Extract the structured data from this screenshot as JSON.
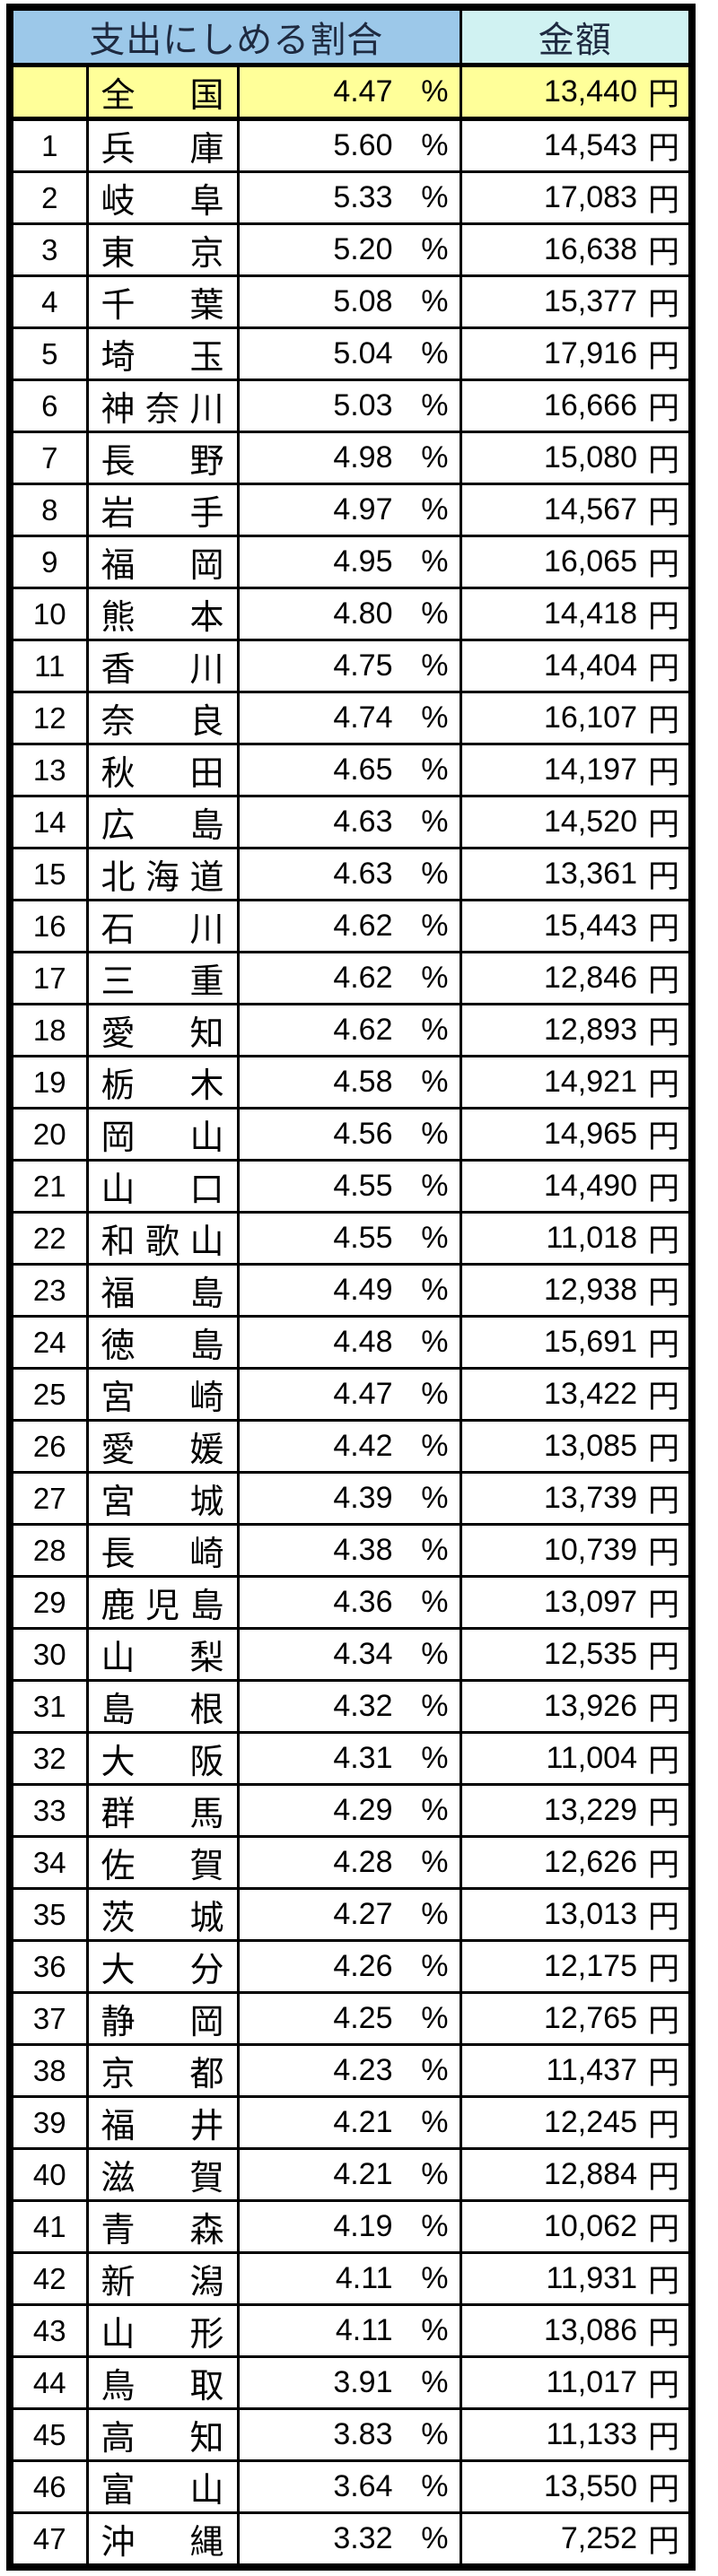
{
  "chart_data": {
    "type": "table",
    "title": "",
    "columns": {
      "ratio_header": "支出にしめる割合",
      "amount_header": "金額"
    },
    "units": {
      "percent": "%",
      "yen": "円"
    },
    "national": {
      "rank": "",
      "name": "全国",
      "percent": "4.47",
      "amount": "13,440"
    },
    "rows": [
      {
        "rank": "1",
        "name": "兵庫",
        "percent": "5.60",
        "amount": "14,543"
      },
      {
        "rank": "2",
        "name": "岐阜",
        "percent": "5.33",
        "amount": "17,083"
      },
      {
        "rank": "3",
        "name": "東京",
        "percent": "5.20",
        "amount": "16,638"
      },
      {
        "rank": "4",
        "name": "千葉",
        "percent": "5.08",
        "amount": "15,377"
      },
      {
        "rank": "5",
        "name": "埼玉",
        "percent": "5.04",
        "amount": "17,916"
      },
      {
        "rank": "6",
        "name": "神奈川",
        "percent": "5.03",
        "amount": "16,666"
      },
      {
        "rank": "7",
        "name": "長野",
        "percent": "4.98",
        "amount": "15,080"
      },
      {
        "rank": "8",
        "name": "岩手",
        "percent": "4.97",
        "amount": "14,567"
      },
      {
        "rank": "9",
        "name": "福岡",
        "percent": "4.95",
        "amount": "16,065"
      },
      {
        "rank": "10",
        "name": "熊本",
        "percent": "4.80",
        "amount": "14,418"
      },
      {
        "rank": "11",
        "name": "香川",
        "percent": "4.75",
        "amount": "14,404"
      },
      {
        "rank": "12",
        "name": "奈良",
        "percent": "4.74",
        "amount": "16,107"
      },
      {
        "rank": "13",
        "name": "秋田",
        "percent": "4.65",
        "amount": "14,197"
      },
      {
        "rank": "14",
        "name": "広島",
        "percent": "4.63",
        "amount": "14,520"
      },
      {
        "rank": "15",
        "name": "北海道",
        "percent": "4.63",
        "amount": "13,361"
      },
      {
        "rank": "16",
        "name": "石川",
        "percent": "4.62",
        "amount": "15,443"
      },
      {
        "rank": "17",
        "name": "三重",
        "percent": "4.62",
        "amount": "12,846"
      },
      {
        "rank": "18",
        "name": "愛知",
        "percent": "4.62",
        "amount": "12,893"
      },
      {
        "rank": "19",
        "name": "栃木",
        "percent": "4.58",
        "amount": "14,921"
      },
      {
        "rank": "20",
        "name": "岡山",
        "percent": "4.56",
        "amount": "14,965"
      },
      {
        "rank": "21",
        "name": "山口",
        "percent": "4.55",
        "amount": "14,490"
      },
      {
        "rank": "22",
        "name": "和歌山",
        "percent": "4.55",
        "amount": "11,018"
      },
      {
        "rank": "23",
        "name": "福島",
        "percent": "4.49",
        "amount": "12,938"
      },
      {
        "rank": "24",
        "name": "徳島",
        "percent": "4.48",
        "amount": "15,691"
      },
      {
        "rank": "25",
        "name": "宮崎",
        "percent": "4.47",
        "amount": "13,422"
      },
      {
        "rank": "26",
        "name": "愛媛",
        "percent": "4.42",
        "amount": "13,085"
      },
      {
        "rank": "27",
        "name": "宮城",
        "percent": "4.39",
        "amount": "13,739"
      },
      {
        "rank": "28",
        "name": "長崎",
        "percent": "4.38",
        "amount": "10,739"
      },
      {
        "rank": "29",
        "name": "鹿児島",
        "percent": "4.36",
        "amount": "13,097"
      },
      {
        "rank": "30",
        "name": "山梨",
        "percent": "4.34",
        "amount": "12,535"
      },
      {
        "rank": "31",
        "name": "島根",
        "percent": "4.32",
        "amount": "13,926"
      },
      {
        "rank": "32",
        "name": "大阪",
        "percent": "4.31",
        "amount": "11,004"
      },
      {
        "rank": "33",
        "name": "群馬",
        "percent": "4.29",
        "amount": "13,229"
      },
      {
        "rank": "34",
        "name": "佐賀",
        "percent": "4.28",
        "amount": "12,626"
      },
      {
        "rank": "35",
        "name": "茨城",
        "percent": "4.27",
        "amount": "13,013"
      },
      {
        "rank": "36",
        "name": "大分",
        "percent": "4.26",
        "amount": "12,175"
      },
      {
        "rank": "37",
        "name": "静岡",
        "percent": "4.25",
        "amount": "12,765"
      },
      {
        "rank": "38",
        "name": "京都",
        "percent": "4.23",
        "amount": "11,437"
      },
      {
        "rank": "39",
        "name": "福井",
        "percent": "4.21",
        "amount": "12,245"
      },
      {
        "rank": "40",
        "name": "滋賀",
        "percent": "4.21",
        "amount": "12,884"
      },
      {
        "rank": "41",
        "name": "青森",
        "percent": "4.19",
        "amount": "10,062"
      },
      {
        "rank": "42",
        "name": "新潟",
        "percent": "4.11",
        "amount": "11,931"
      },
      {
        "rank": "43",
        "name": "山形",
        "percent": "4.11",
        "amount": "13,086"
      },
      {
        "rank": "44",
        "name": "鳥取",
        "percent": "3.91",
        "amount": "11,017"
      },
      {
        "rank": "45",
        "name": "高知",
        "percent": "3.83",
        "amount": "11,133"
      },
      {
        "rank": "46",
        "name": "富山",
        "percent": "3.64",
        "amount": "13,550"
      },
      {
        "rank": "47",
        "name": "沖縄",
        "percent": "3.32",
        "amount": "7,252"
      }
    ]
  },
  "colors": {
    "ratio_header_bg": "#9CC8E9",
    "amount_header_bg": "#D0F2F2",
    "national_row_bg": "#FFFF99",
    "row_bg": "#FFFFFF",
    "border": "#000000",
    "header_text": "#1E2A40",
    "body_text": "#000000"
  }
}
